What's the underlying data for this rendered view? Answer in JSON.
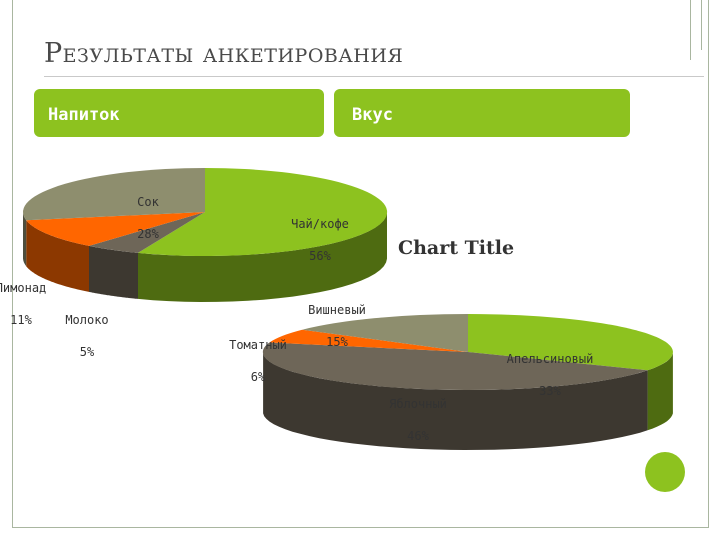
{
  "slide": {
    "title": "Результаты анкетирования"
  },
  "header": {
    "left_label": "Напиток",
    "right_label": "Вкус"
  },
  "chart_data": [
    {
      "type": "pie",
      "style": "3d",
      "title": "",
      "slices": [
        {
          "label": "Чай/кофе",
          "percent": "56%",
          "value": 56,
          "color": "#8dc21f"
        },
        {
          "label": "Молоко",
          "percent": "5%",
          "value": 5,
          "color": "#6e6658"
        },
        {
          "label": "Лимонад",
          "percent": "11%",
          "value": 11,
          "color": "#ff6600"
        },
        {
          "label": "Сок",
          "percent": "28%",
          "value": 28,
          "color": "#8e8e6e"
        }
      ]
    },
    {
      "type": "pie",
      "style": "3d",
      "title": "Chart Title",
      "slices": [
        {
          "label": "Апельсиновый",
          "percent": "33%",
          "value": 33,
          "color": "#8dc21f"
        },
        {
          "label": "Яблочный",
          "percent": "46%",
          "value": 46,
          "color": "#6e6658"
        },
        {
          "label": "Томатный",
          "percent": "6%",
          "value": 6,
          "color": "#ff6600"
        },
        {
          "label": "Вишневый",
          "percent": "15%",
          "value": 15,
          "color": "#8e8e6e"
        }
      ]
    }
  ]
}
